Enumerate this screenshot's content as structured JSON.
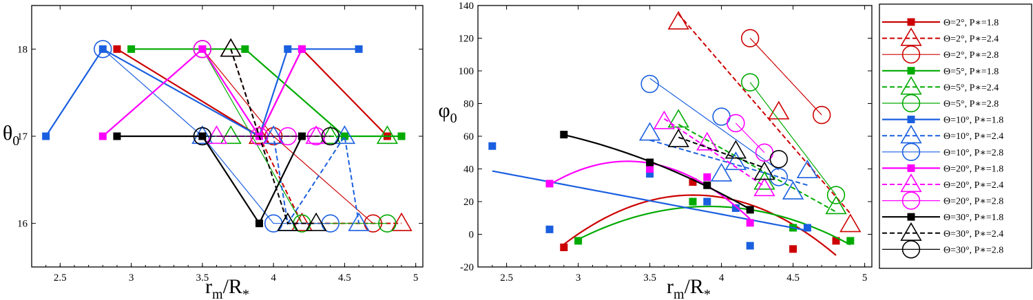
{
  "chart_data": [
    {
      "type": "line",
      "xlabel": "r_m/R_*",
      "ylabel": "θ_0",
      "xlim": [
        2.3,
        5.05
      ],
      "ylim": [
        15.5,
        18.5
      ],
      "xticks": [
        "2.5",
        "3",
        "3.5",
        "4",
        "4.5",
        "5"
      ],
      "yticks": [
        "16",
        "17",
        "18"
      ],
      "series": [
        {
          "name": "Θ=2°, P*=1.8",
          "points": [
            [
              2.9,
              18
            ],
            [
              3.9,
              17
            ],
            [
              4.2,
              18
            ],
            [
              4.8,
              17
            ]
          ]
        },
        {
          "name": "Θ=2°, P*=2.4",
          "points": [
            [
              3.7,
              18
            ],
            [
              3.9,
              17
            ],
            [
              4.2,
              16
            ],
            [
              4.9,
              16
            ]
          ]
        },
        {
          "name": "Θ=2°, P*=2.8",
          "points": [
            [
              3.5,
              18
            ],
            [
              4.0,
              17
            ],
            [
              4.7,
              16
            ]
          ]
        },
        {
          "name": "Θ=5°, P*=1.8",
          "points": [
            [
              3.0,
              18
            ],
            [
              3.8,
              18
            ],
            [
              4.5,
              17
            ],
            [
              4.9,
              17
            ]
          ]
        },
        {
          "name": "Θ=5°, P*=2.4",
          "points": [
            [
              3.7,
              17
            ],
            [
              4.4,
              17
            ],
            [
              4.8,
              17
            ]
          ]
        },
        {
          "name": "Θ=5°, P*=2.8",
          "points": [
            [
              3.5,
              18
            ],
            [
              4.2,
              16
            ],
            [
              4.8,
              16
            ]
          ]
        },
        {
          "name": "Θ=10°, P*=1.8",
          "points": [
            [
              2.4,
              17
            ],
            [
              2.8,
              18
            ],
            [
              3.9,
              17
            ],
            [
              4.1,
              18
            ],
            [
              4.6,
              18
            ]
          ]
        },
        {
          "name": "Θ=10°, P*=2.4",
          "points": [
            [
              3.5,
              17
            ],
            [
              4.0,
              17
            ],
            [
              4.1,
              16
            ],
            [
              4.5,
              17
            ],
            [
              4.6,
              16
            ]
          ]
        },
        {
          "name": "Θ=10°, P*=2.8",
          "points": [
            [
              2.8,
              18
            ],
            [
              3.5,
              17
            ],
            [
              4.0,
              16
            ],
            [
              4.4,
              16
            ]
          ]
        },
        {
          "name": "Θ=20°, P*=1.8",
          "points": [
            [
              2.8,
              17
            ],
            [
              3.5,
              18
            ],
            [
              3.9,
              17
            ],
            [
              4.2,
              18
            ]
          ]
        },
        {
          "name": "Θ=20°, P*=2.4",
          "points": [
            [
              3.6,
              17
            ],
            [
              4.3,
              17
            ]
          ]
        },
        {
          "name": "Θ=20°, P*=2.8",
          "points": [
            [
              3.5,
              18
            ],
            [
              3.9,
              17
            ],
            [
              4.1,
              17
            ],
            [
              4.3,
              17
            ]
          ]
        },
        {
          "name": "Θ=30°, P*=1.8",
          "points": [
            [
              2.9,
              17
            ],
            [
              3.5,
              17
            ],
            [
              3.9,
              16
            ],
            [
              4.2,
              17
            ]
          ]
        },
        {
          "name": "Θ=30°, P*=2.4",
          "points": [
            [
              3.7,
              18
            ],
            [
              4.1,
              16
            ],
            [
              4.3,
              16
            ]
          ]
        },
        {
          "name": "Θ=30°, P*=2.8",
          "points": [
            [
              3.5,
              17
            ],
            [
              4.4,
              17
            ]
          ]
        }
      ]
    },
    {
      "type": "scatter",
      "xlabel": "r_m/R_*",
      "ylabel": "φ_0",
      "xlim": [
        2.3,
        5.05
      ],
      "ylim": [
        -20,
        140
      ],
      "xticks": [
        "2.5",
        "3",
        "3.5",
        "4",
        "4.5",
        "5"
      ],
      "yticks": [
        "-20",
        "0",
        "20",
        "40",
        "60",
        "80",
        "100",
        "120",
        "140"
      ],
      "series": [
        {
          "name": "Θ=2°, P*=1.8",
          "points": [
            [
              2.9,
              -8
            ],
            [
              3.8,
              32
            ],
            [
              4.5,
              -9
            ],
            [
              4.8,
              -4
            ]
          ]
        },
        {
          "name": "Θ=2°, P*=2.4",
          "points": [
            [
              3.7,
              130
            ],
            [
              4.4,
              75
            ],
            [
              4.9,
              6
            ]
          ]
        },
        {
          "name": "Θ=2°, P*=2.8",
          "points": [
            [
              4.2,
              120
            ],
            [
              4.7,
              73
            ]
          ]
        },
        {
          "name": "Θ=5°, P*=1.8",
          "points": [
            [
              3.0,
              -4
            ],
            [
              3.8,
              20
            ],
            [
              4.5,
              4
            ],
            [
              4.9,
              -4
            ]
          ]
        },
        {
          "name": "Θ=5°, P*=2.4",
          "points": [
            [
              3.7,
              70
            ],
            [
              4.3,
              32
            ],
            [
              4.8,
              17
            ]
          ]
        },
        {
          "name": "Θ=5°, P*=2.8",
          "points": [
            [
              4.2,
              93
            ],
            [
              4.8,
              24
            ]
          ]
        },
        {
          "name": "Θ=10°, P*=1.8",
          "points": [
            [
              2.4,
              54
            ],
            [
              2.8,
              3
            ],
            [
              3.5,
              37
            ],
            [
              3.9,
              20
            ],
            [
              4.1,
              16
            ],
            [
              4.2,
              -7
            ],
            [
              4.6,
              4
            ]
          ]
        },
        {
          "name": "Θ=10°, P*=2.4",
          "points": [
            [
              3.5,
              62
            ],
            [
              4.0,
              37
            ],
            [
              4.1,
              44
            ],
            [
              4.5,
              26
            ],
            [
              4.6,
              39
            ]
          ]
        },
        {
          "name": "Θ=10°, P*=2.8",
          "points": [
            [
              3.5,
              92
            ],
            [
              4.0,
              72
            ],
            [
              4.4,
              35
            ]
          ]
        },
        {
          "name": "Θ=20°, P*=1.8",
          "points": [
            [
              2.8,
              31
            ],
            [
              3.5,
              40
            ],
            [
              3.9,
              35
            ],
            [
              4.2,
              7
            ]
          ]
        },
        {
          "name": "Θ=20°, P*=2.4",
          "points": [
            [
              3.6,
              69
            ],
            [
              3.9,
              56
            ],
            [
              4.3,
              28
            ]
          ]
        },
        {
          "name": "Θ=20°, P*=2.8",
          "points": [
            [
              4.1,
              68
            ],
            [
              4.3,
              50
            ]
          ]
        },
        {
          "name": "Θ=30°, P*=1.8",
          "points": [
            [
              2.9,
              61
            ],
            [
              3.5,
              44
            ],
            [
              3.9,
              30
            ],
            [
              4.2,
              15
            ]
          ]
        },
        {
          "name": "Θ=30°, P*=2.4",
          "points": [
            [
              3.7,
              58
            ],
            [
              4.1,
              51
            ],
            [
              4.3,
              38
            ]
          ]
        },
        {
          "name": "Θ=30°, P*=2.8",
          "points": [
            [
              4.4,
              46
            ]
          ]
        }
      ]
    }
  ],
  "legend": {
    "placement": "right",
    "entries": [
      "Θ=2°, P*=1.8",
      "Θ=2°, P*=2.4",
      "Θ=2°, P*=2.8",
      "Θ=5°, P*=1.8",
      "Θ=5°, P*=2.4",
      "Θ=5°, P*=2.8",
      "Θ=10°, P*=1.8",
      "Θ=10°, P*=2.4",
      "Θ=10°, P*=2.8",
      "Θ=20°, P*=1.8",
      "Θ=20°, P*=2.4",
      "Θ=20°, P*=2.8",
      "Θ=30°, P*=1.8",
      "Θ=30°, P*=2.4",
      "Θ=30°, P*=2.8"
    ]
  },
  "style": {
    "colors": {
      "2": "#cc0000",
      "5": "#00aa00",
      "10": "#1a5fe0",
      "20": "#ff00ff",
      "30": "#000000"
    },
    "markers": {
      "1.8": "filled-square",
      "2.4": "open-triangle",
      "2.8": "open-circle"
    },
    "line_styles": {
      "1.8": "solid-thick",
      "2.4": "dashed",
      "2.8": "solid-thin"
    }
  }
}
